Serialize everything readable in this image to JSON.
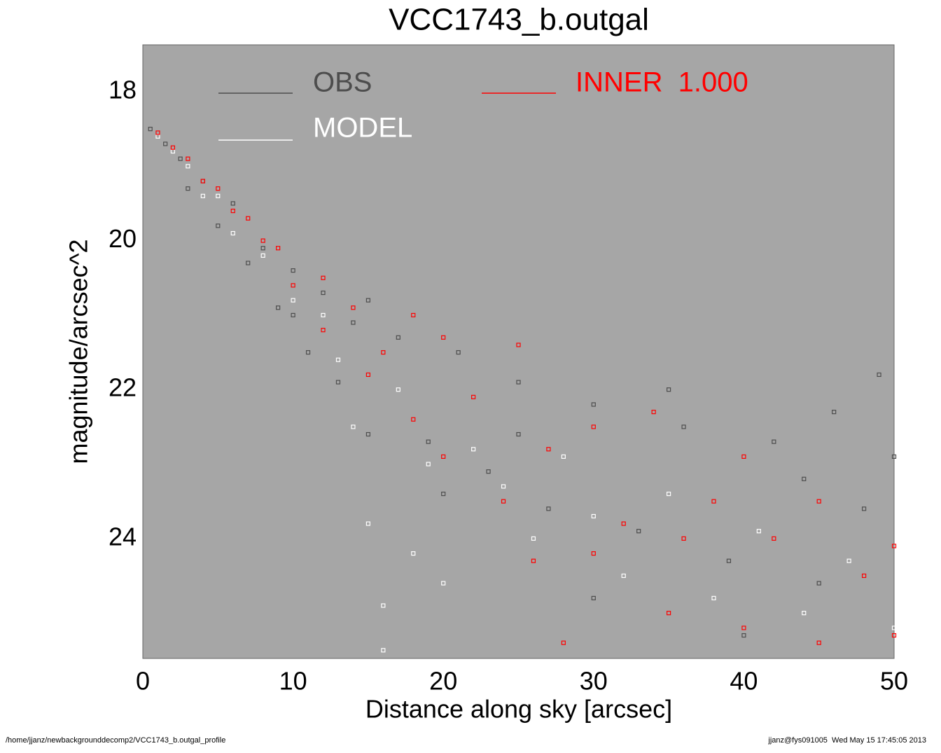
{
  "chart_data": {
    "type": "scatter",
    "title": "VCC1743_b.outgal",
    "x_label": "Distance along sky [arcsec]",
    "y_label": "magnitude/arcsec^2",
    "xlim": [
      0,
      50
    ],
    "ylim": [
      25.61,
      17.37
    ],
    "xticks": [
      0,
      10,
      20,
      30,
      40,
      50
    ],
    "yticks": [
      18,
      20,
      22,
      24
    ],
    "grid": false,
    "legend": "top",
    "series": [
      {
        "name": "OBS",
        "color": "#4d4d4d",
        "x": [
          0.5,
          1.5,
          2.5,
          3,
          4,
          5,
          6,
          7,
          8,
          9,
          10,
          11,
          12,
          13,
          14,
          15,
          17,
          19,
          21,
          23,
          25,
          27,
          30,
          33,
          36,
          39,
          42,
          44,
          46,
          48,
          50,
          10,
          15,
          20,
          25,
          30,
          35,
          40,
          45,
          49
        ],
        "values": [
          18.5,
          18.7,
          18.9,
          19.3,
          19.2,
          19.8,
          19.5,
          20.3,
          20.1,
          20.9,
          20.4,
          21.5,
          20.7,
          21.9,
          21.1,
          22.6,
          21.3,
          22.7,
          21.5,
          23.1,
          21.9,
          23.6,
          22.2,
          23.9,
          22.5,
          24.3,
          22.7,
          23.2,
          22.3,
          23.6,
          22.9,
          21.0,
          20.8,
          23.4,
          22.6,
          24.8,
          22.0,
          25.3,
          24.6,
          21.8
        ]
      },
      {
        "name": "MODEL",
        "color": "#ffffff",
        "x": [
          1,
          2,
          3,
          4,
          5,
          6,
          8,
          10,
          12,
          14,
          15,
          16,
          17,
          18,
          19,
          20,
          22,
          24,
          26,
          28,
          30,
          32,
          35,
          38,
          41,
          44,
          47,
          50,
          13,
          16
        ],
        "values": [
          18.6,
          18.8,
          19.0,
          19.4,
          19.4,
          19.9,
          20.2,
          20.8,
          21.0,
          22.5,
          23.8,
          24.9,
          22.0,
          24.2,
          23.0,
          24.6,
          22.8,
          23.3,
          24.0,
          22.9,
          23.7,
          24.5,
          23.4,
          24.8,
          23.9,
          25.0,
          24.3,
          25.2,
          21.6,
          25.5
        ]
      },
      {
        "name": "INNER  1.000",
        "color": "#ff0000",
        "x": [
          1,
          2,
          3,
          4,
          5,
          6,
          7,
          8,
          9,
          10,
          12,
          12,
          14,
          15,
          16,
          18,
          18,
          20,
          20,
          22,
          24,
          25,
          26,
          27,
          28,
          30,
          30,
          32,
          34,
          35,
          38,
          40,
          40,
          42,
          45,
          45,
          48,
          50,
          50,
          36
        ],
        "values": [
          18.55,
          18.75,
          18.9,
          19.2,
          19.3,
          19.6,
          19.7,
          20.0,
          20.1,
          20.6,
          20.5,
          21.2,
          20.9,
          21.8,
          21.5,
          21.0,
          22.4,
          21.3,
          22.9,
          22.1,
          23.5,
          21.4,
          24.3,
          22.8,
          25.4,
          22.5,
          24.2,
          23.8,
          22.3,
          25.0,
          23.5,
          22.9,
          25.2,
          24.0,
          23.5,
          25.4,
          24.5,
          24.1,
          25.3,
          24.0
        ]
      }
    ],
    "footer_left": "/home/jjanz/newbackgrounddecomp2/VCC1743_b.outgal_profile",
    "footer_right": "jjanz@fys091005  Wed May 15 17:45:05 2013"
  }
}
